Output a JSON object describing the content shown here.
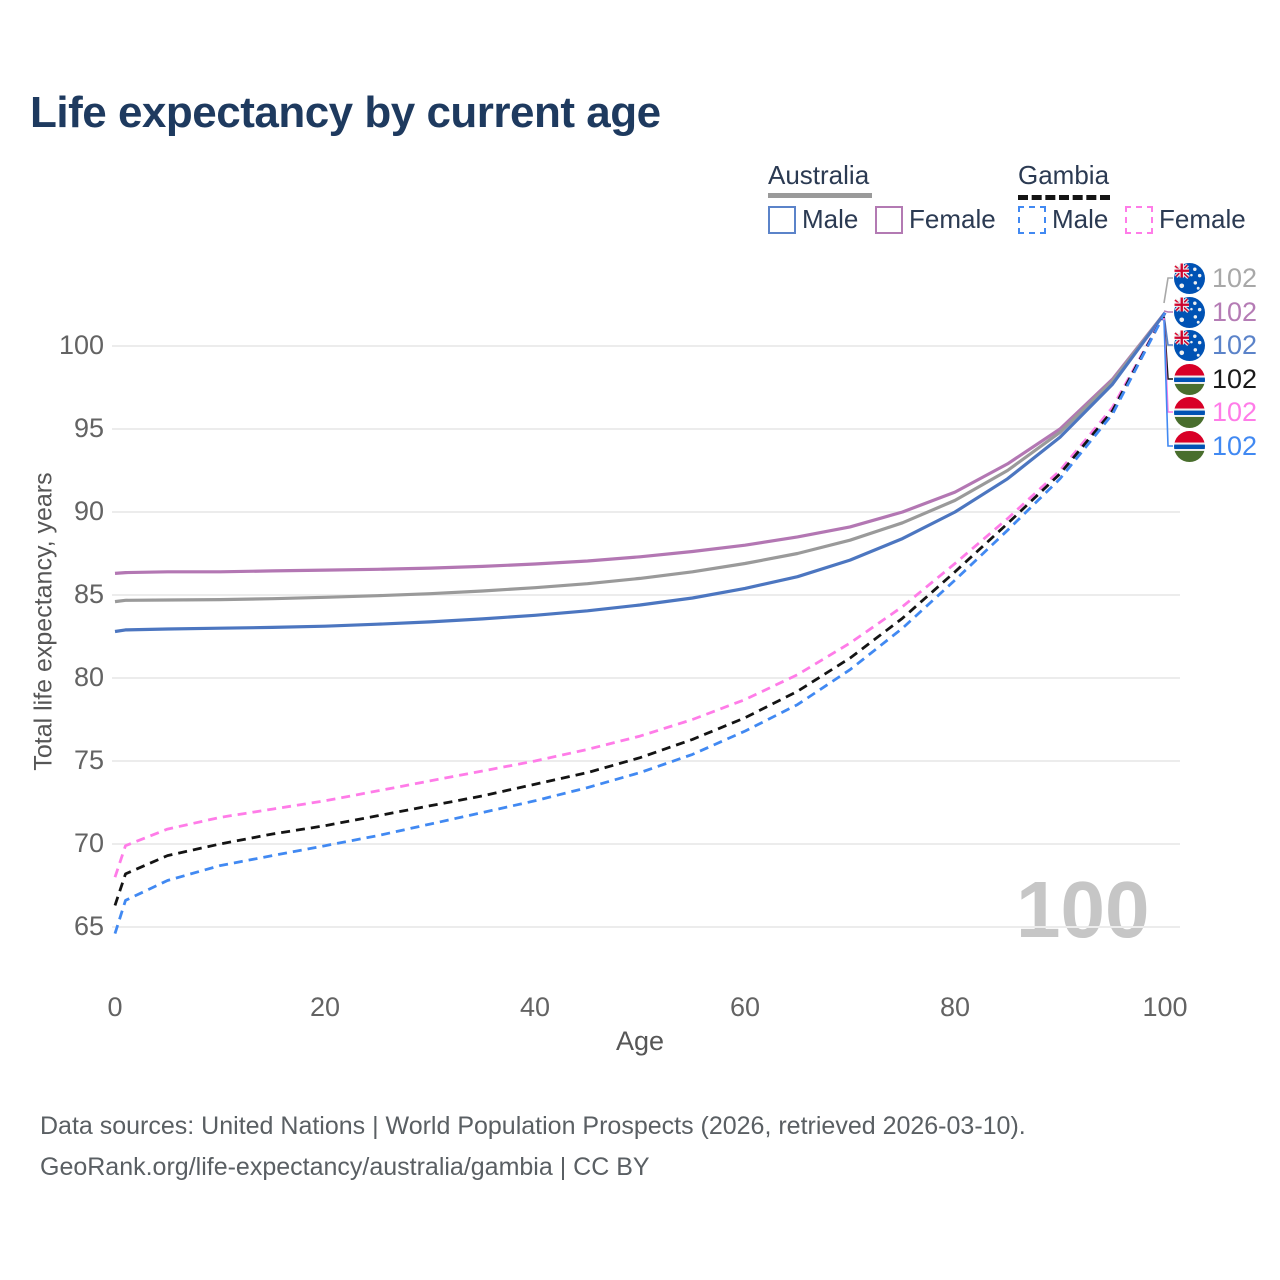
{
  "title": "Life expectancy by current age",
  "legend": {
    "groups": [
      {
        "label": "Australia",
        "underline": "solid",
        "underline_color": "#9a9a9a",
        "items": [
          {
            "label": "Male",
            "color": "#4c76c0",
            "dashed": false
          },
          {
            "label": "Female",
            "color": "#b377b3",
            "dashed": false
          }
        ]
      },
      {
        "label": "Gambia",
        "underline": "dashed",
        "underline_color": "#141414",
        "items": [
          {
            "label": "Male",
            "color": "#4189f2",
            "dashed": true
          },
          {
            "label": "Female",
            "color": "#ff7ce8",
            "dashed": true
          }
        ]
      }
    ]
  },
  "chart_data": {
    "type": "line",
    "title": "Life expectancy by current age",
    "xlabel": "Age",
    "ylabel": "Total life expectancy, years",
    "xlim": [
      0,
      100
    ],
    "ylim": [
      63,
      103
    ],
    "xticks": [
      0,
      20,
      40,
      60,
      80,
      100
    ],
    "yticks": [
      65,
      70,
      75,
      80,
      85,
      90,
      95,
      100
    ],
    "grid": "horizontal-only",
    "legend_position": "top-right",
    "watermark": "100",
    "x_ages": [
      0,
      1,
      5,
      10,
      15,
      20,
      25,
      30,
      35,
      40,
      45,
      50,
      55,
      60,
      65,
      70,
      75,
      80,
      85,
      90,
      95,
      100
    ],
    "series": [
      {
        "name": "Australia Female",
        "country": "Australia",
        "sex": "Female",
        "color": "#b377b3",
        "dash": "solid",
        "values": [
          86.3,
          86.35,
          86.4,
          86.4,
          86.45,
          86.5,
          86.55,
          86.62,
          86.72,
          86.87,
          87.05,
          87.3,
          87.62,
          88.0,
          88.5,
          89.1,
          90.0,
          91.2,
          92.9,
          95.0,
          98.0,
          102
        ]
      },
      {
        "name": "Australia All",
        "country": "Australia",
        "sex": "All",
        "color": "#9a9a9a",
        "dash": "solid",
        "values": [
          84.6,
          84.68,
          84.7,
          84.72,
          84.78,
          84.86,
          84.96,
          85.08,
          85.24,
          85.44,
          85.68,
          86.0,
          86.4,
          86.9,
          87.5,
          88.3,
          89.35,
          90.7,
          92.5,
          94.8,
          97.9,
          102
        ]
      },
      {
        "name": "Australia Male",
        "country": "Australia",
        "sex": "Male",
        "color": "#4c76c0",
        "dash": "solid",
        "values": [
          82.8,
          82.9,
          82.95,
          83.0,
          83.05,
          83.12,
          83.24,
          83.38,
          83.56,
          83.78,
          84.05,
          84.4,
          84.82,
          85.4,
          86.1,
          87.1,
          88.4,
          90.0,
          92.0,
          94.5,
          97.7,
          102
        ]
      },
      {
        "name": "Gambia Female",
        "country": "Gambia",
        "sex": "Female",
        "color": "#ff7ce8",
        "dash": "dashed",
        "values": [
          68.0,
          69.9,
          70.9,
          71.6,
          72.1,
          72.6,
          73.2,
          73.8,
          74.4,
          75.0,
          75.7,
          76.5,
          77.5,
          78.7,
          80.2,
          82.1,
          84.3,
          86.9,
          89.6,
          92.5,
          96.3,
          102
        ]
      },
      {
        "name": "Gambia All",
        "country": "Gambia",
        "sex": "All",
        "color": "#141414",
        "dash": "dashed",
        "values": [
          66.3,
          68.2,
          69.3,
          70.0,
          70.6,
          71.1,
          71.7,
          72.3,
          72.9,
          73.6,
          74.3,
          75.2,
          76.3,
          77.6,
          79.2,
          81.2,
          83.6,
          86.4,
          89.3,
          92.3,
          96.1,
          102
        ]
      },
      {
        "name": "Gambia Male",
        "country": "Gambia",
        "sex": "Male",
        "color": "#4189f2",
        "dash": "dashed",
        "values": [
          64.6,
          66.6,
          67.8,
          68.7,
          69.3,
          69.9,
          70.5,
          71.2,
          71.9,
          72.6,
          73.4,
          74.3,
          75.4,
          76.8,
          78.4,
          80.5,
          83.0,
          85.9,
          88.9,
          92.0,
          95.9,
          102
        ]
      }
    ],
    "end_labels": [
      {
        "value": "102",
        "flag": "australia",
        "color": "#a8a8a8",
        "series": "Australia All"
      },
      {
        "value": "102",
        "flag": "australia",
        "color": "#b57cb5",
        "series": "Australia Female"
      },
      {
        "value": "102",
        "flag": "australia",
        "color": "#5b83c9",
        "series": "Australia Male"
      },
      {
        "value": "102",
        "flag": "gambia",
        "color": "#1a1a1a",
        "series": "Gambia All"
      },
      {
        "value": "102",
        "flag": "gambia",
        "color": "#ff7ce8",
        "series": "Gambia Female"
      },
      {
        "value": "102",
        "flag": "gambia",
        "color": "#4189f2",
        "series": "Gambia Male"
      }
    ]
  },
  "flags": {
    "australia": {
      "base": "#0052B4",
      "jack_red": "#D80027",
      "jack_white": "#f0f0f0",
      "star": "#f0f0f0"
    },
    "gambia": {
      "red": "#D80027",
      "white": "#f0f0f0",
      "blue": "#0052B4",
      "green": "#496E2D"
    }
  },
  "source": {
    "line1": "Data sources: United Nations | World Population Prospects (2026, retrieved 2026-03-10).",
    "line2": "GeoRank.org/life-expectancy/australia/gambia | CC BY"
  }
}
